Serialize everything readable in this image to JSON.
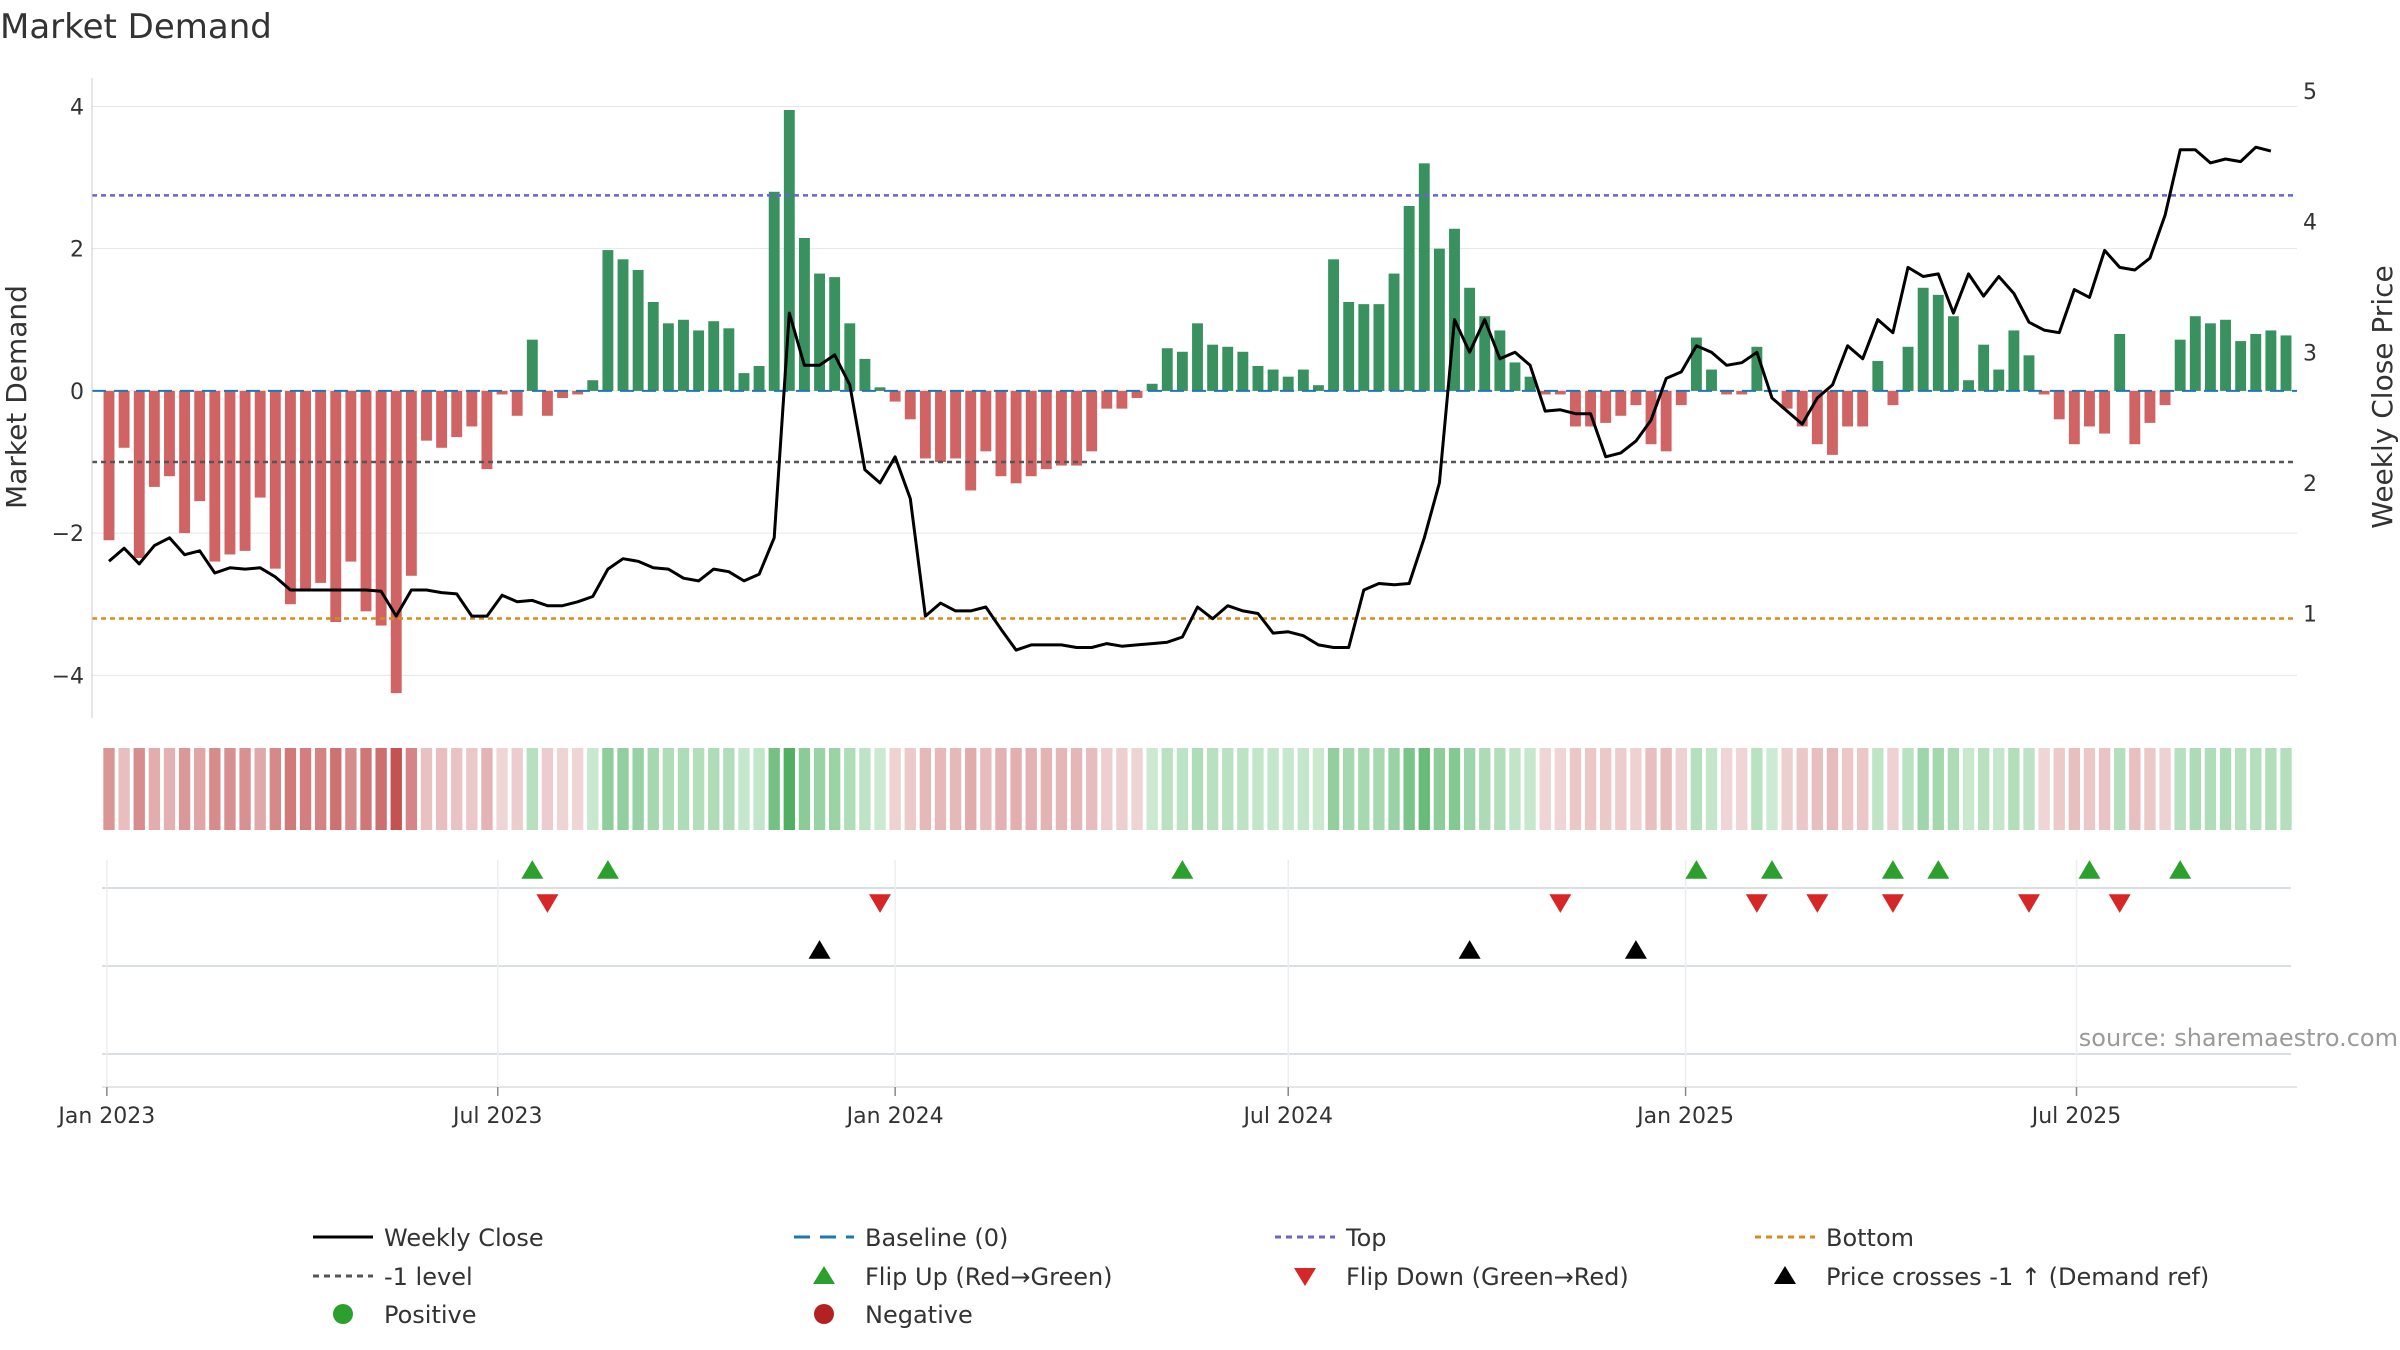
{
  "chart_data": {
    "type": "bar",
    "title": "Market Demand",
    "ylabel": "Market Demand",
    "y2label": "Weekly Close Price",
    "ylim": [
      -4.6,
      4.4
    ],
    "y2lim": [
      0.2,
      5.1
    ],
    "yticks": [
      -4,
      -2,
      0,
      2,
      4
    ],
    "y2ticks": [
      1,
      2,
      3,
      4,
      5
    ],
    "x_start": "2023-01-02",
    "x_end": "2025-10-06",
    "xticks": [
      "Jan 2023",
      "Jul 2023",
      "Jan 2024",
      "Jul 2024",
      "Jan 2025",
      "Jul 2025"
    ],
    "xtick_dates": [
      "2023-01-01",
      "2023-07-01",
      "2024-01-01",
      "2024-07-01",
      "2025-01-01",
      "2025-07-01"
    ],
    "levels": {
      "top": 2.75,
      "bottom": -3.2,
      "minus_one": -1.0,
      "baseline": 0
    },
    "demand": [
      -2.1,
      -0.8,
      -2.35,
      -1.35,
      -1.2,
      -2.0,
      -1.55,
      -2.4,
      -2.3,
      -2.25,
      -1.5,
      -2.5,
      -3.0,
      -2.8,
      -2.7,
      -3.25,
      -2.4,
      -3.1,
      -3.3,
      -4.25,
      -2.6,
      -0.7,
      -0.8,
      -0.65,
      -0.5,
      -1.1,
      -0.05,
      -0.35,
      0.72,
      -0.35,
      -0.1,
      -0.05,
      0.15,
      1.98,
      1.85,
      1.7,
      1.25,
      0.95,
      1.0,
      0.85,
      0.98,
      0.88,
      0.25,
      0.35,
      2.8,
      3.95,
      2.15,
      1.65,
      1.6,
      0.95,
      0.45,
      0.05,
      -0.15,
      -0.4,
      -0.95,
      -1.0,
      -0.95,
      -1.4,
      -0.85,
      -1.2,
      -1.3,
      -1.2,
      -1.1,
      -1.05,
      -1.05,
      -0.85,
      -0.25,
      -0.25,
      -0.1,
      0.1,
      0.6,
      0.55,
      0.95,
      0.65,
      0.62,
      0.55,
      0.35,
      0.3,
      0.2,
      0.3,
      0.08,
      1.85,
      1.25,
      1.22,
      1.22,
      1.65,
      2.6,
      3.2,
      2.0,
      2.28,
      1.45,
      1.05,
      0.85,
      0.4,
      0.2,
      -0.05,
      -0.05,
      -0.5,
      -0.5,
      -0.45,
      -0.35,
      -0.2,
      -0.75,
      -0.85,
      -0.2,
      0.75,
      0.3,
      -0.05,
      -0.05,
      0.62,
      0.0,
      -0.25,
      -0.5,
      -0.75,
      -0.9,
      -0.5,
      -0.5,
      0.42,
      -0.2,
      0.62,
      1.45,
      1.35,
      1.05,
      0.15,
      0.65,
      0.3,
      0.85,
      0.5,
      -0.05,
      -0.4,
      -0.75,
      -0.5,
      -0.6,
      0.8,
      -0.75,
      -0.45,
      -0.2,
      0.72,
      1.05,
      0.95,
      1.0,
      0.7,
      0.8,
      0.85,
      0.78
    ],
    "price": [
      1.4,
      1.5,
      1.38,
      1.52,
      1.58,
      1.45,
      1.48,
      1.31,
      1.35,
      1.34,
      1.35,
      1.28,
      1.18,
      1.18,
      1.18,
      1.18,
      1.18,
      1.18,
      1.17,
      0.98,
      1.18,
      1.18,
      1.16,
      1.15,
      0.98,
      0.98,
      1.14,
      1.09,
      1.1,
      1.06,
      1.06,
      1.09,
      1.13,
      1.34,
      1.42,
      1.4,
      1.35,
      1.34,
      1.27,
      1.25,
      1.34,
      1.32,
      1.25,
      1.3,
      1.58,
      3.3,
      2.9,
      2.9,
      2.98,
      2.75,
      2.1,
      2.0,
      2.2,
      1.88,
      0.98,
      1.08,
      1.02,
      1.02,
      1.05,
      0.88,
      0.72,
      0.76,
      0.76,
      0.76,
      0.74,
      0.74,
      0.77,
      0.75,
      0.76,
      0.77,
      0.78,
      0.82,
      1.05,
      0.96,
      1.06,
      1.02,
      1.0,
      0.85,
      0.86,
      0.83,
      0.76,
      0.74,
      0.74,
      1.18,
      1.23,
      1.22,
      1.23,
      1.58,
      2.0,
      3.25,
      3.0,
      3.25,
      2.95,
      3.0,
      2.9,
      2.55,
      2.56,
      2.53,
      2.53,
      2.2,
      2.23,
      2.32,
      2.48,
      2.8,
      2.85,
      3.05,
      3.0,
      2.9,
      2.92,
      3.0,
      2.65,
      2.55,
      2.45,
      2.65,
      2.75,
      3.05,
      2.95,
      3.25,
      3.15,
      3.65,
      3.58,
      3.6,
      3.3,
      3.6,
      3.43,
      3.58,
      3.45,
      3.23,
      3.17,
      3.15,
      3.48,
      3.42,
      3.78,
      3.65,
      3.63,
      3.72,
      4.05,
      4.55,
      4.55,
      4.45,
      4.48,
      4.46,
      4.57,
      4.54
    ],
    "flips_up": [
      "2023-07-17",
      "2023-08-21",
      "2024-05-13",
      "2025-01-06",
      "2025-02-10",
      "2025-04-07",
      "2025-04-28",
      "2025-07-07",
      "2025-08-18"
    ],
    "flips_down": [
      "2023-07-24",
      "2023-12-25",
      "2024-11-04",
      "2025-02-03",
      "2025-03-03",
      "2025-04-07",
      "2025-06-09",
      "2025-07-21"
    ],
    "price_crosses": [
      "2023-11-27",
      "2024-09-23",
      "2024-12-09"
    ],
    "source": "source: sharemaestro.com",
    "legend": [
      {
        "key": "weekly-close",
        "label": "Weekly Close",
        "symbol": "solid-line",
        "color": "#000000"
      },
      {
        "key": "baseline",
        "label": "Baseline (0)",
        "symbol": "dashed-line",
        "color": "#1f77b4"
      },
      {
        "key": "top",
        "label": "Top",
        "symbol": "dotted-line",
        "color": "#6666cc"
      },
      {
        "key": "bottom",
        "label": "Bottom",
        "symbol": "dotted-line",
        "color": "#d98a1c"
      },
      {
        "key": "minus-one-level",
        "label": "-1 level",
        "symbol": "dotted-line",
        "color": "#555555"
      },
      {
        "key": "flip-up",
        "label": "Flip Up (Red→Green)",
        "symbol": "triangle-up",
        "color": "#2ca02c"
      },
      {
        "key": "flip-down",
        "label": "Flip Down (Green→Red)",
        "symbol": "triangle-down",
        "color": "#d62728"
      },
      {
        "key": "price-crosses",
        "label": "Price crosses -1 ↑ (Demand ref)",
        "symbol": "triangle-up",
        "color": "#000000"
      },
      {
        "key": "positive",
        "label": "Positive",
        "symbol": "circle",
        "color": "#2ca02c"
      },
      {
        "key": "negative",
        "label": "Negative",
        "symbol": "circle",
        "color": "#b22222"
      }
    ],
    "colors": {
      "positive_bar": "#2e8b57",
      "negative_bar": "#cd5c5c",
      "price_line": "#000000",
      "grid": "#e6e6e6"
    }
  }
}
